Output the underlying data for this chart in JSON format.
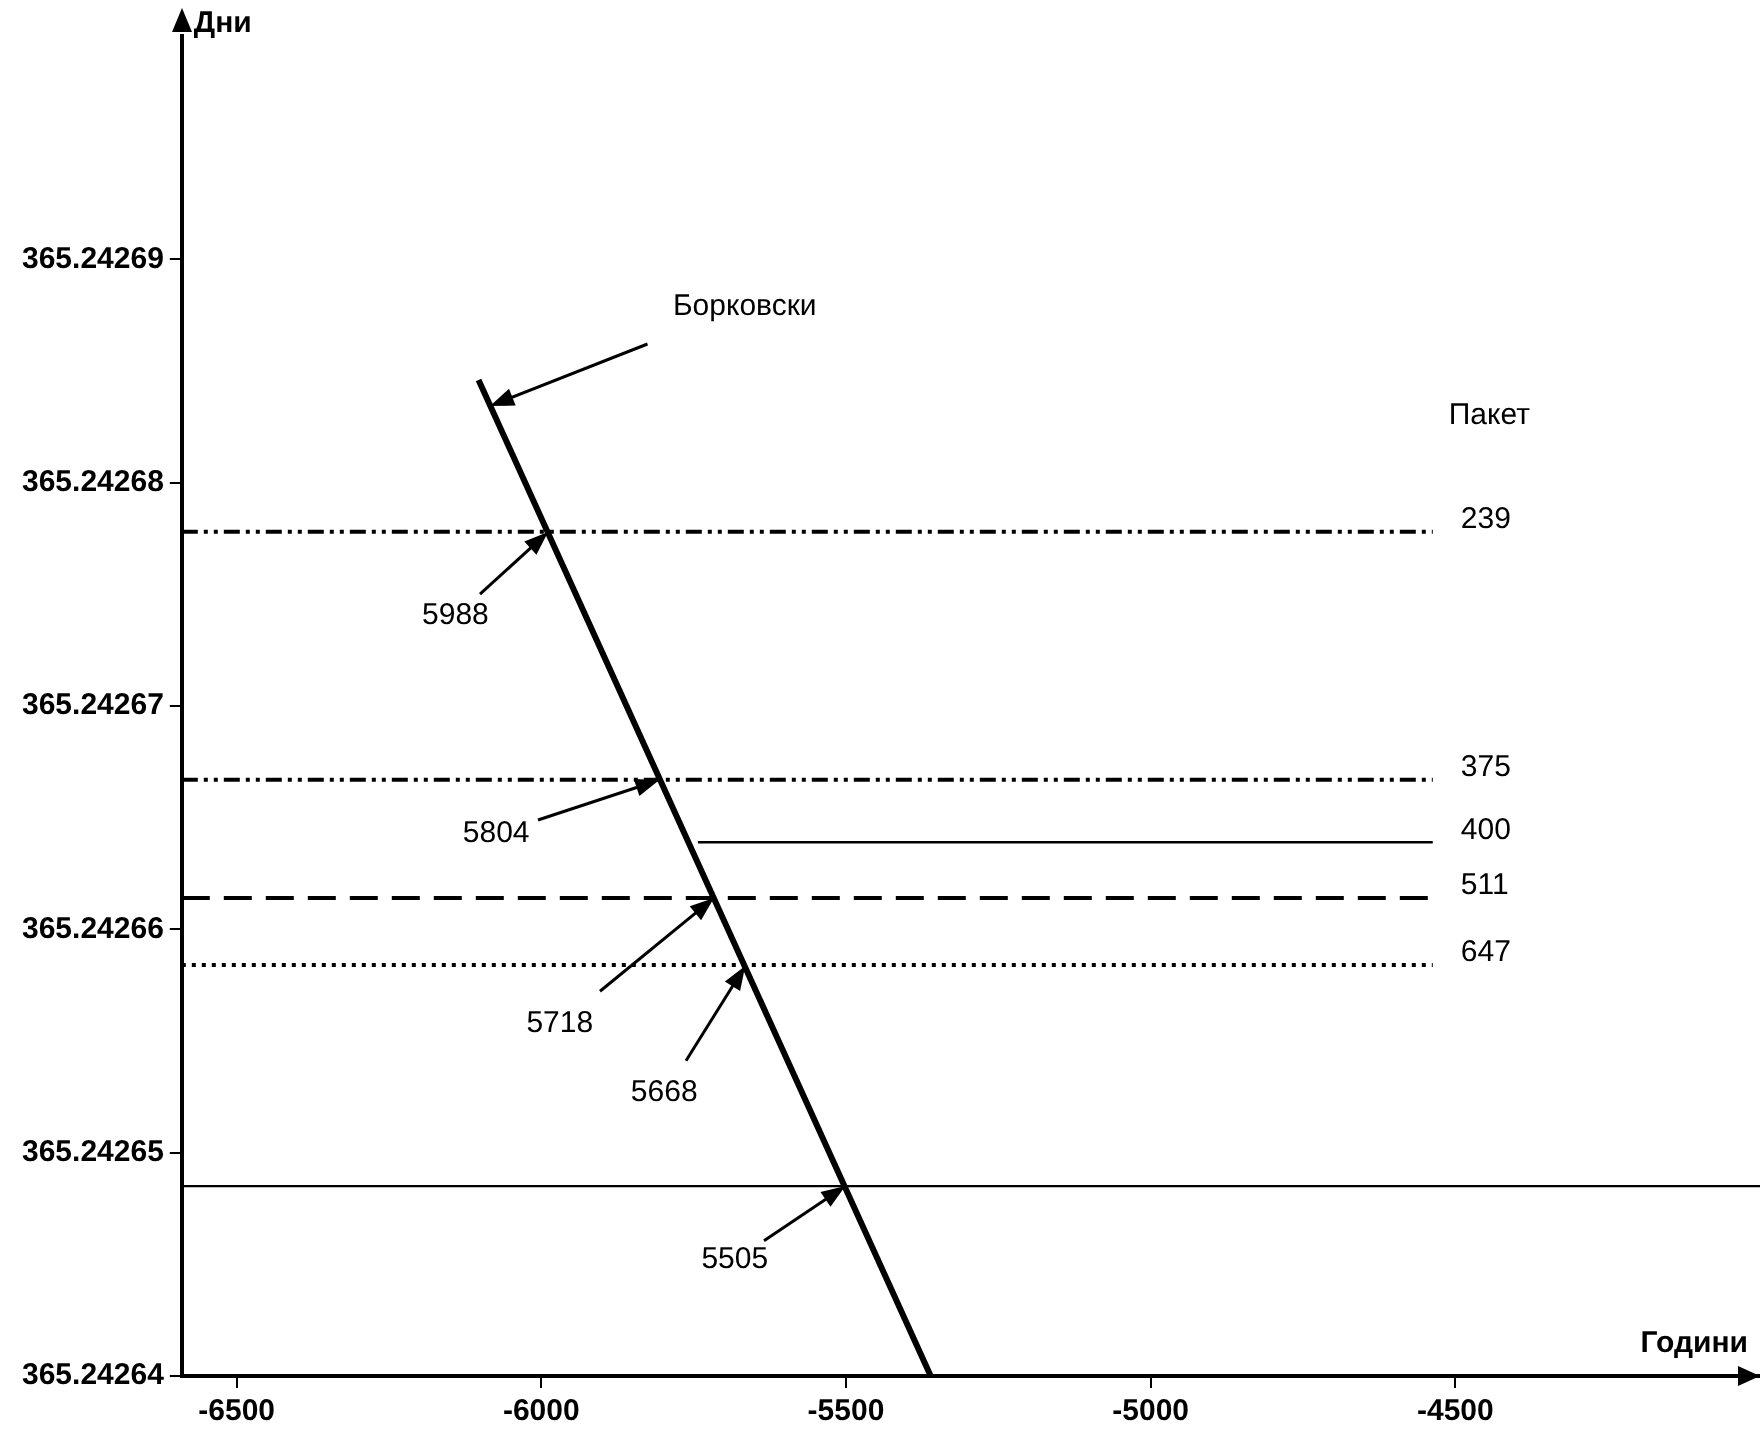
{
  "chart_data": {
    "type": "line",
    "xlabel": "Години",
    "ylabel": "Дни",
    "legend_title": "Пакет",
    "xlim": [
      -6590,
      -4000
    ],
    "ylim": [
      365.24264,
      365.2427
    ],
    "xticks": [
      -6500,
      -6000,
      -5500,
      -5000,
      -4500
    ],
    "yticks": [
      365.24264,
      365.24265,
      365.24266,
      365.24267,
      365.24268,
      365.24269
    ],
    "grid": false,
    "legend": false,
    "marker": "none",
    "series": [
      {
        "color": "#000000",
        "line_style": "solid",
        "x": [
          -6103,
          -5361
        ],
        "values": [
          365.2426846,
          365.24264
        ]
      },
      {
        "name": "239",
        "color": "#000000",
        "line_style": "dashdot",
        "x": [
          -6590,
          -4537
        ],
        "values": [
          365.2426778,
          365.2426778
        ]
      },
      {
        "name": "375",
        "color": "#000000",
        "line_style": "dashdot",
        "x": [
          -6590,
          -4537
        ],
        "values": [
          365.2426667,
          365.2426667
        ]
      },
      {
        "name": "400",
        "color": "#000000",
        "line_style": "solid",
        "x": [
          -5743,
          -4537
        ],
        "values": [
          365.2426639,
          365.2426639
        ]
      },
      {
        "name": "511",
        "color": "#000000",
        "line_style": "dashed",
        "x": [
          -6590,
          -4537
        ],
        "values": [
          365.2426614,
          365.2426614
        ]
      },
      {
        "name": "647",
        "color": "#000000",
        "line_style": "dotted",
        "x": [
          -6590,
          -4537
        ],
        "values": [
          365.2426584,
          365.2426584
        ]
      },
      {
        "color": "#000000",
        "line_style": "solid",
        "x": [
          -6590,
          -4000
        ],
        "values": [
          365.2426485,
          365.2426485
        ]
      }
    ],
    "annotations": [
      {
        "text": "Борковски",
        "x": -6083,
        "y": 365.2426834
      },
      {
        "text": "5988",
        "x": -5990,
        "y": 365.2426778
      },
      {
        "text": "5804",
        "x": -5805,
        "y": 365.2426667
      },
      {
        "text": "5718",
        "x": -5717,
        "y": 365.2426614
      },
      {
        "text": "5668",
        "x": -5667,
        "y": 365.2426584
      },
      {
        "text": "5505",
        "x": -5502,
        "y": 365.2426485
      }
    ]
  }
}
